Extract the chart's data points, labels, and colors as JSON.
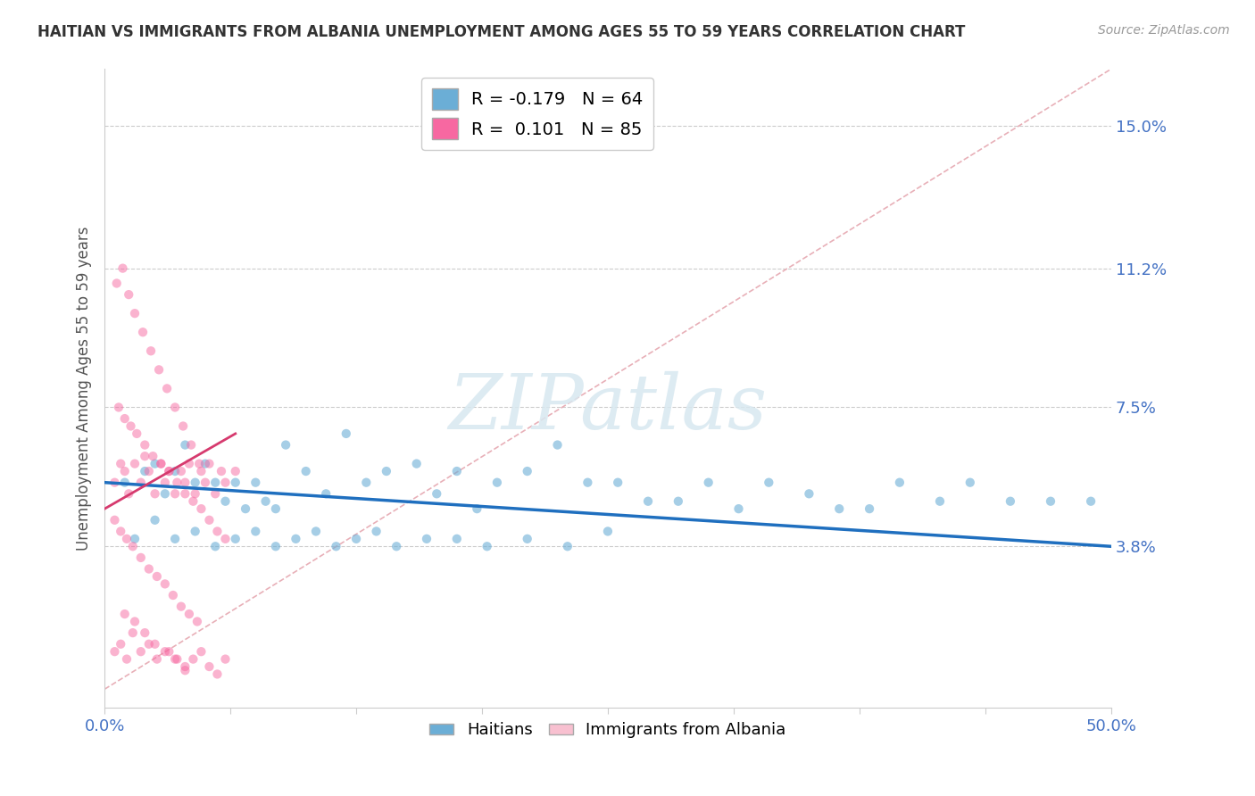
{
  "title": "HAITIAN VS IMMIGRANTS FROM ALBANIA UNEMPLOYMENT AMONG AGES 55 TO 59 YEARS CORRELATION CHART",
  "source": "Source: ZipAtlas.com",
  "ylabel_label": "Unemployment Among Ages 55 to 59 years",
  "ytick_labels": [
    "3.8%",
    "7.5%",
    "11.2%",
    "15.0%"
  ],
  "ytick_values": [
    0.038,
    0.075,
    0.112,
    0.15
  ],
  "xlim": [
    0.0,
    0.5
  ],
  "ylim": [
    -0.005,
    0.165
  ],
  "legend_entries": [
    {
      "label": "R = -0.179   N = 64",
      "color": "#6baed6"
    },
    {
      "label": "R =  0.101   N = 85",
      "color": "#f768a1"
    }
  ],
  "blue_color": "#6baed6",
  "pink_color": "#f768a1",
  "blue_line_color": "#1f6fbf",
  "pink_line_color": "#d63a6e",
  "watermark_text": "ZIPatlas",
  "background_color": "#ffffff",
  "grid_color": "#cccccc",
  "ref_line_color": "#ccaaaa",
  "haitian_x": [
    0.01,
    0.02,
    0.025,
    0.03,
    0.035,
    0.04,
    0.045,
    0.05,
    0.055,
    0.06,
    0.065,
    0.07,
    0.075,
    0.08,
    0.085,
    0.09,
    0.1,
    0.11,
    0.12,
    0.13,
    0.14,
    0.155,
    0.165,
    0.175,
    0.185,
    0.195,
    0.21,
    0.225,
    0.24,
    0.255,
    0.27,
    0.285,
    0.3,
    0.315,
    0.33,
    0.35,
    0.365,
    0.38,
    0.395,
    0.415,
    0.43,
    0.45,
    0.47,
    0.49,
    0.015,
    0.025,
    0.035,
    0.045,
    0.055,
    0.065,
    0.075,
    0.085,
    0.095,
    0.105,
    0.115,
    0.125,
    0.135,
    0.145,
    0.16,
    0.175,
    0.19,
    0.21,
    0.23,
    0.25
  ],
  "haitian_y": [
    0.055,
    0.058,
    0.06,
    0.052,
    0.058,
    0.065,
    0.055,
    0.06,
    0.055,
    0.05,
    0.055,
    0.048,
    0.055,
    0.05,
    0.048,
    0.065,
    0.058,
    0.052,
    0.068,
    0.055,
    0.058,
    0.06,
    0.052,
    0.058,
    0.048,
    0.055,
    0.058,
    0.065,
    0.055,
    0.055,
    0.05,
    0.05,
    0.055,
    0.048,
    0.055,
    0.052,
    0.048,
    0.048,
    0.055,
    0.05,
    0.055,
    0.05,
    0.05,
    0.05,
    0.04,
    0.045,
    0.04,
    0.042,
    0.038,
    0.04,
    0.042,
    0.038,
    0.04,
    0.042,
    0.038,
    0.04,
    0.042,
    0.038,
    0.04,
    0.04,
    0.038,
    0.04,
    0.038,
    0.042
  ],
  "albania_x": [
    0.005,
    0.008,
    0.01,
    0.012,
    0.015,
    0.018,
    0.02,
    0.022,
    0.025,
    0.028,
    0.03,
    0.032,
    0.035,
    0.038,
    0.04,
    0.042,
    0.045,
    0.048,
    0.05,
    0.052,
    0.055,
    0.058,
    0.06,
    0.065,
    0.007,
    0.01,
    0.013,
    0.016,
    0.02,
    0.024,
    0.028,
    0.032,
    0.036,
    0.04,
    0.044,
    0.048,
    0.052,
    0.056,
    0.06,
    0.005,
    0.008,
    0.011,
    0.014,
    0.018,
    0.022,
    0.026,
    0.03,
    0.034,
    0.038,
    0.042,
    0.046,
    0.006,
    0.009,
    0.012,
    0.015,
    0.019,
    0.023,
    0.027,
    0.031,
    0.035,
    0.039,
    0.043,
    0.047,
    0.005,
    0.008,
    0.011,
    0.014,
    0.018,
    0.022,
    0.026,
    0.032,
    0.036,
    0.04,
    0.044,
    0.048,
    0.052,
    0.056,
    0.06,
    0.01,
    0.015,
    0.02,
    0.025,
    0.03,
    0.035,
    0.04
  ],
  "albania_y": [
    0.055,
    0.06,
    0.058,
    0.052,
    0.06,
    0.055,
    0.062,
    0.058,
    0.052,
    0.06,
    0.055,
    0.058,
    0.052,
    0.058,
    0.055,
    0.06,
    0.052,
    0.058,
    0.055,
    0.06,
    0.052,
    0.058,
    0.055,
    0.058,
    0.075,
    0.072,
    0.07,
    0.068,
    0.065,
    0.062,
    0.06,
    0.058,
    0.055,
    0.052,
    0.05,
    0.048,
    0.045,
    0.042,
    0.04,
    0.045,
    0.042,
    0.04,
    0.038,
    0.035,
    0.032,
    0.03,
    0.028,
    0.025,
    0.022,
    0.02,
    0.018,
    0.108,
    0.112,
    0.105,
    0.1,
    0.095,
    0.09,
    0.085,
    0.08,
    0.075,
    0.07,
    0.065,
    0.06,
    0.01,
    0.012,
    0.008,
    0.015,
    0.01,
    0.012,
    0.008,
    0.01,
    0.008,
    0.006,
    0.008,
    0.01,
    0.006,
    0.004,
    0.008,
    0.02,
    0.018,
    0.015,
    0.012,
    0.01,
    0.008,
    0.005
  ]
}
